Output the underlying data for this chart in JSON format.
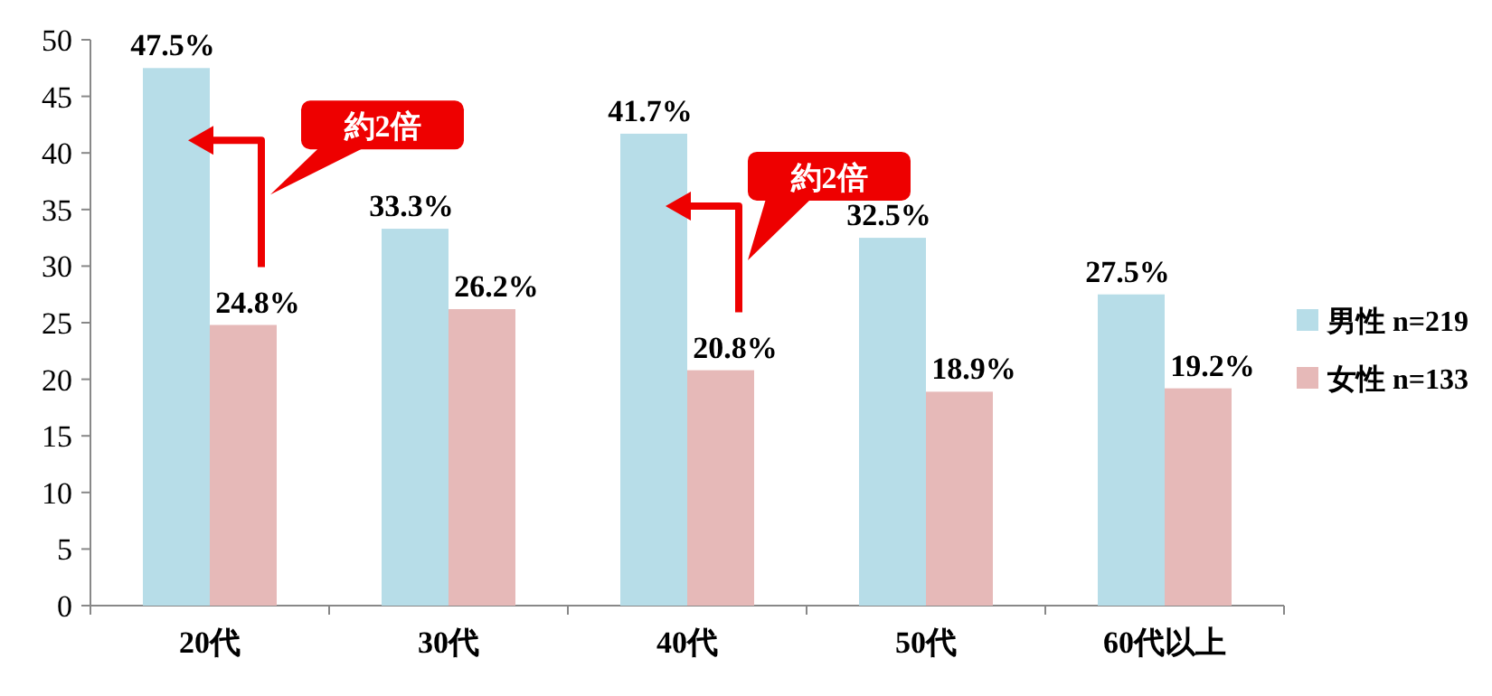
{
  "chart_data": {
    "type": "bar",
    "categories": [
      "20代",
      "30代",
      "40代",
      "50代",
      "60代以上"
    ],
    "series": [
      {
        "name": "男性 n=219",
        "color": "#b7dde8",
        "values": [
          47.5,
          33.3,
          41.7,
          32.5,
          27.5
        ],
        "value_labels": [
          "47.5%",
          "33.3%",
          "41.7%",
          "32.5%",
          "27.5%"
        ]
      },
      {
        "name": "女性 n=133",
        "color": "#e6b9b8",
        "values": [
          24.8,
          26.2,
          20.8,
          18.9,
          19.2
        ],
        "value_labels": [
          "24.8%",
          "26.2%",
          "20.8%",
          "18.9%",
          "19.2%"
        ]
      }
    ],
    "ylim": [
      0,
      50
    ],
    "yticks": [
      0,
      5,
      10,
      15,
      20,
      25,
      30,
      35,
      40,
      45,
      50
    ],
    "legend": "right",
    "annotations": [
      "約2倍",
      "約2倍"
    ]
  }
}
